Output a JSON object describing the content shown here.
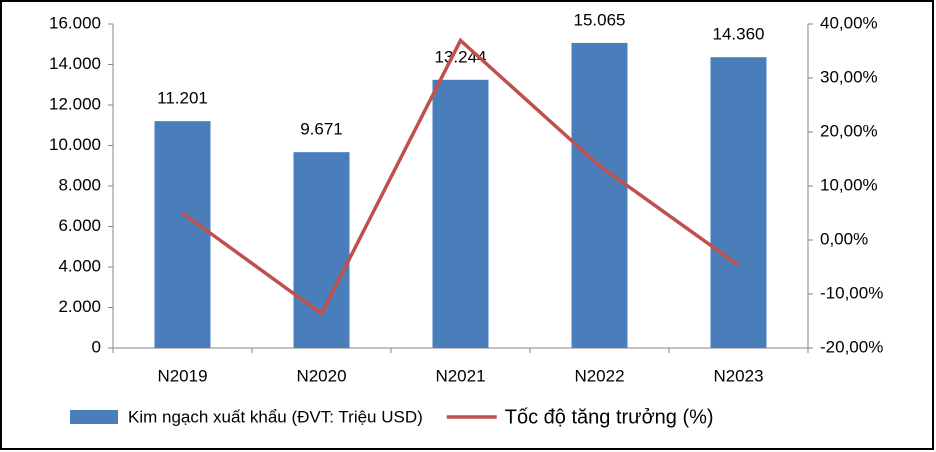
{
  "chart_data": {
    "type": "bar_line",
    "categories": [
      "N2019",
      "N2020",
      "N2021",
      "N2022",
      "N2023"
    ],
    "series": [
      {
        "name": "Kim ngạch xuất khẩu (ĐVT: Triệu USD)",
        "type": "bar",
        "color": "#4a7ebb",
        "values": [
          11201,
          9671,
          13244,
          15065,
          14360
        ],
        "value_labels": [
          "11.201",
          "9.671",
          "13.244",
          "15.065",
          "14.360"
        ]
      },
      {
        "name": "Tốc độ tăng trưởng (%)",
        "type": "line",
        "axis": "y2",
        "color": "#c0504d",
        "values": [
          5,
          -13.66,
          36.95,
          13.75,
          -4.68
        ]
      }
    ],
    "ylim": [
      0,
      16000
    ],
    "yticks": [
      {
        "value": 0,
        "label": "0"
      },
      {
        "value": 2000,
        "label": "2.000"
      },
      {
        "value": 4000,
        "label": "4.000"
      },
      {
        "value": 6000,
        "label": "6.000"
      },
      {
        "value": 8000,
        "label": "8.000"
      },
      {
        "value": 10000,
        "label": "10.000"
      },
      {
        "value": 12000,
        "label": "12.000"
      },
      {
        "value": 14000,
        "label": "14.000"
      },
      {
        "value": 16000,
        "label": "16.000"
      }
    ],
    "y2lim": [
      -20,
      40
    ],
    "y2ticks": [
      {
        "value": -20,
        "label": "-20,00%"
      },
      {
        "value": -10,
        "label": "-10,00%"
      },
      {
        "value": 0,
        "label": "0,00%"
      },
      {
        "value": 10,
        "label": "10,00%"
      },
      {
        "value": 20,
        "label": "20,00%"
      },
      {
        "value": 30,
        "label": "30,00%"
      },
      {
        "value": 40,
        "label": "40,00%"
      }
    ],
    "grid": false,
    "legend": "bottom"
  }
}
